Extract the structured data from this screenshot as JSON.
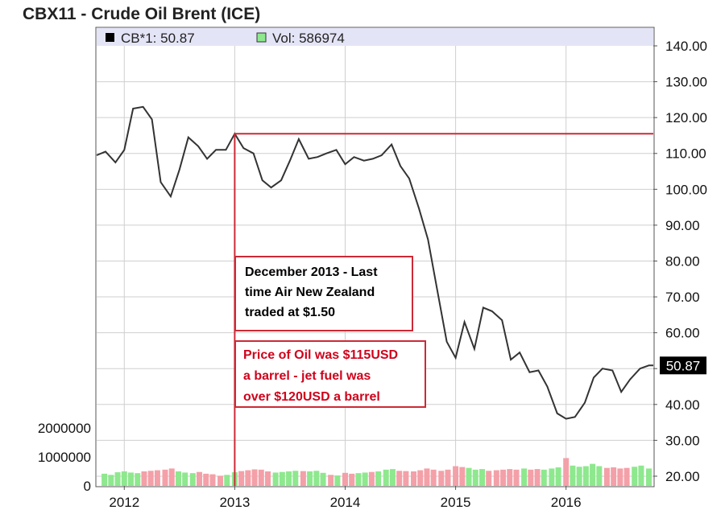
{
  "chart_data": {
    "type": "line",
    "title": "CBX11 - Crude Oil Brent (ICE)",
    "legend": [
      {
        "label": "CB*1: 50.87",
        "color": "#000000"
      },
      {
        "label": "Vol: 586974",
        "color": "#8ee88e"
      }
    ],
    "price_label": "50.87",
    "x_ticks": [
      {
        "x": 2012.0,
        "label": "2012"
      },
      {
        "x": 2013.0,
        "label": "2013"
      },
      {
        "x": 2014.0,
        "label": "2014"
      },
      {
        "x": 2015.0,
        "label": "2015"
      },
      {
        "x": 2016.0,
        "label": "2016"
      }
    ],
    "xlim": [
      2011.75,
      2016.79
    ],
    "ylim": [
      17.3,
      140
    ],
    "y_ticks": [
      "140.00",
      "130.00",
      "120.00",
      "110.00",
      "100.00",
      "90.00",
      "80.00",
      "70.00",
      "60.00",
      "50.00",
      "40.00",
      "30.00",
      "20.00"
    ],
    "y_tick_values": [
      140,
      130,
      120,
      110,
      100,
      90,
      80,
      70,
      60,
      50,
      40,
      30,
      20
    ],
    "volume_ticks": [
      {
        "value": 2000000,
        "label": "2000000"
      },
      {
        "value": 1000000,
        "label": "1000000"
      },
      {
        "value": 0,
        "label": "0"
      }
    ],
    "volume_max": 2000000,
    "series": [
      {
        "name": "CB*1",
        "color": "#333333",
        "x": [
          2011.75,
          2011.83,
          2011.92,
          2012.0,
          2012.08,
          2012.17,
          2012.25,
          2012.33,
          2012.42,
          2012.5,
          2012.58,
          2012.67,
          2012.75,
          2012.83,
          2012.92,
          2013.0,
          2013.08,
          2013.17,
          2013.25,
          2013.33,
          2013.42,
          2013.5,
          2013.58,
          2013.67,
          2013.75,
          2013.83,
          2013.92,
          2014.0,
          2014.08,
          2014.17,
          2014.25,
          2014.33,
          2014.42,
          2014.5,
          2014.58,
          2014.67,
          2014.75,
          2014.83,
          2014.92,
          2015.0,
          2015.08,
          2015.17,
          2015.25,
          2015.33,
          2015.42,
          2015.5,
          2015.58,
          2015.67,
          2015.75,
          2015.83,
          2015.92,
          2016.0,
          2016.08,
          2016.17,
          2016.25,
          2016.33,
          2016.42,
          2016.5,
          2016.58,
          2016.67,
          2016.75,
          2016.79
        ],
        "values": [
          109.5,
          110.5,
          107.5,
          111,
          122.5,
          123,
          119.5,
          102,
          98,
          105.5,
          114.5,
          112,
          108.5,
          111,
          111,
          115.5,
          111.5,
          110,
          102.5,
          100.5,
          102.5,
          108,
          114,
          108.5,
          109,
          110,
          111,
          107,
          109,
          108,
          108.5,
          109.5,
          112.5,
          106.5,
          103,
          94.5,
          86,
          72.5,
          57.5,
          53,
          63,
          55.5,
          67,
          66,
          63.5,
          52.5,
          54.5,
          49,
          49.5,
          45,
          37.5,
          36,
          36.5,
          40.5,
          47.5,
          50,
          49.5,
          43.5,
          47,
          50,
          50.87,
          50.87
        ]
      }
    ],
    "volume": [
      {
        "x": 2011.82,
        "value": 420000,
        "color": "#8ee88e"
      },
      {
        "x": 2011.88,
        "value": 380000,
        "color": "#8ee88e"
      },
      {
        "x": 2011.94,
        "value": 470000,
        "color": "#8ee88e"
      },
      {
        "x": 2012.0,
        "value": 500000,
        "color": "#8ee88e"
      },
      {
        "x": 2012.06,
        "value": 460000,
        "color": "#8ee88e"
      },
      {
        "x": 2012.12,
        "value": 440000,
        "color": "#8ee88e"
      },
      {
        "x": 2012.18,
        "value": 500000,
        "color": "#f4a0a8"
      },
      {
        "x": 2012.24,
        "value": 520000,
        "color": "#f4a0a8"
      },
      {
        "x": 2012.3,
        "value": 540000,
        "color": "#f4a0a8"
      },
      {
        "x": 2012.37,
        "value": 560000,
        "color": "#f4a0a8"
      },
      {
        "x": 2012.43,
        "value": 600000,
        "color": "#f4a0a8"
      },
      {
        "x": 2012.49,
        "value": 500000,
        "color": "#8ee88e"
      },
      {
        "x": 2012.55,
        "value": 460000,
        "color": "#8ee88e"
      },
      {
        "x": 2012.62,
        "value": 440000,
        "color": "#8ee88e"
      },
      {
        "x": 2012.68,
        "value": 480000,
        "color": "#f4a0a8"
      },
      {
        "x": 2012.74,
        "value": 420000,
        "color": "#f4a0a8"
      },
      {
        "x": 2012.8,
        "value": 400000,
        "color": "#f4a0a8"
      },
      {
        "x": 2012.87,
        "value": 350000,
        "color": "#f4a0a8"
      },
      {
        "x": 2012.93,
        "value": 380000,
        "color": "#8ee88e"
      },
      {
        "x": 2013.0,
        "value": 470000,
        "color": "#8ee88e"
      },
      {
        "x": 2013.06,
        "value": 510000,
        "color": "#f4a0a8"
      },
      {
        "x": 2013.12,
        "value": 540000,
        "color": "#f4a0a8"
      },
      {
        "x": 2013.18,
        "value": 570000,
        "color": "#f4a0a8"
      },
      {
        "x": 2013.24,
        "value": 560000,
        "color": "#f4a0a8"
      },
      {
        "x": 2013.3,
        "value": 500000,
        "color": "#f4a0a8"
      },
      {
        "x": 2013.37,
        "value": 460000,
        "color": "#8ee88e"
      },
      {
        "x": 2013.43,
        "value": 480000,
        "color": "#8ee88e"
      },
      {
        "x": 2013.49,
        "value": 500000,
        "color": "#8ee88e"
      },
      {
        "x": 2013.55,
        "value": 520000,
        "color": "#8ee88e"
      },
      {
        "x": 2013.62,
        "value": 510000,
        "color": "#f4a0a8"
      },
      {
        "x": 2013.68,
        "value": 500000,
        "color": "#8ee88e"
      },
      {
        "x": 2013.74,
        "value": 520000,
        "color": "#8ee88e"
      },
      {
        "x": 2013.8,
        "value": 450000,
        "color": "#8ee88e"
      },
      {
        "x": 2013.87,
        "value": 380000,
        "color": "#f4a0a8"
      },
      {
        "x": 2013.93,
        "value": 360000,
        "color": "#8ee88e"
      },
      {
        "x": 2014.0,
        "value": 450000,
        "color": "#f4a0a8"
      },
      {
        "x": 2014.06,
        "value": 420000,
        "color": "#f4a0a8"
      },
      {
        "x": 2014.12,
        "value": 440000,
        "color": "#8ee88e"
      },
      {
        "x": 2014.18,
        "value": 460000,
        "color": "#8ee88e"
      },
      {
        "x": 2014.24,
        "value": 480000,
        "color": "#f4a0a8"
      },
      {
        "x": 2014.3,
        "value": 500000,
        "color": "#8ee88e"
      },
      {
        "x": 2014.37,
        "value": 560000,
        "color": "#8ee88e"
      },
      {
        "x": 2014.43,
        "value": 580000,
        "color": "#8ee88e"
      },
      {
        "x": 2014.49,
        "value": 520000,
        "color": "#f4a0a8"
      },
      {
        "x": 2014.55,
        "value": 510000,
        "color": "#f4a0a8"
      },
      {
        "x": 2014.62,
        "value": 500000,
        "color": "#f4a0a8"
      },
      {
        "x": 2014.68,
        "value": 540000,
        "color": "#f4a0a8"
      },
      {
        "x": 2014.74,
        "value": 600000,
        "color": "#f4a0a8"
      },
      {
        "x": 2014.8,
        "value": 560000,
        "color": "#f4a0a8"
      },
      {
        "x": 2014.87,
        "value": 520000,
        "color": "#f4a0a8"
      },
      {
        "x": 2014.93,
        "value": 560000,
        "color": "#f4a0a8"
      },
      {
        "x": 2015.0,
        "value": 680000,
        "color": "#f4a0a8"
      },
      {
        "x": 2015.06,
        "value": 650000,
        "color": "#f4a0a8"
      },
      {
        "x": 2015.12,
        "value": 620000,
        "color": "#8ee88e"
      },
      {
        "x": 2015.18,
        "value": 560000,
        "color": "#8ee88e"
      },
      {
        "x": 2015.24,
        "value": 580000,
        "color": "#8ee88e"
      },
      {
        "x": 2015.3,
        "value": 520000,
        "color": "#f4a0a8"
      },
      {
        "x": 2015.37,
        "value": 540000,
        "color": "#f4a0a8"
      },
      {
        "x": 2015.43,
        "value": 560000,
        "color": "#f4a0a8"
      },
      {
        "x": 2015.49,
        "value": 580000,
        "color": "#f4a0a8"
      },
      {
        "x": 2015.55,
        "value": 560000,
        "color": "#f4a0a8"
      },
      {
        "x": 2015.62,
        "value": 600000,
        "color": "#8ee88e"
      },
      {
        "x": 2015.68,
        "value": 560000,
        "color": "#f4a0a8"
      },
      {
        "x": 2015.74,
        "value": 580000,
        "color": "#f4a0a8"
      },
      {
        "x": 2015.8,
        "value": 560000,
        "color": "#8ee88e"
      },
      {
        "x": 2015.87,
        "value": 600000,
        "color": "#8ee88e"
      },
      {
        "x": 2015.93,
        "value": 640000,
        "color": "#8ee88e"
      },
      {
        "x": 2016.0,
        "value": 960000,
        "color": "#f4a0a8"
      },
      {
        "x": 2016.06,
        "value": 700000,
        "color": "#8ee88e"
      },
      {
        "x": 2016.12,
        "value": 660000,
        "color": "#8ee88e"
      },
      {
        "x": 2016.18,
        "value": 680000,
        "color": "#8ee88e"
      },
      {
        "x": 2016.24,
        "value": 760000,
        "color": "#8ee88e"
      },
      {
        "x": 2016.3,
        "value": 680000,
        "color": "#8ee88e"
      },
      {
        "x": 2016.37,
        "value": 620000,
        "color": "#f4a0a8"
      },
      {
        "x": 2016.43,
        "value": 640000,
        "color": "#f4a0a8"
      },
      {
        "x": 2016.49,
        "value": 600000,
        "color": "#f4a0a8"
      },
      {
        "x": 2016.55,
        "value": 620000,
        "color": "#f4a0a8"
      },
      {
        "x": 2016.62,
        "value": 660000,
        "color": "#8ee88e"
      },
      {
        "x": 2016.68,
        "value": 700000,
        "color": "#8ee88e"
      },
      {
        "x": 2016.75,
        "value": 600000,
        "color": "#8ee88e"
      }
    ],
    "annotations": [
      {
        "text": [
          "December 2013 - Last",
          "time Air New Zealand",
          "traded at $1.50"
        ],
        "color": "#000000"
      },
      {
        "text": [
          "Price of Oil was $115USD",
          "a barrel - jet fuel was",
          "over $120USD a barrel"
        ],
        "color": "#d0021b"
      }
    ],
    "reference_lines": {
      "color": "#cc2a36",
      "x": 2013.0,
      "y": 115.5
    }
  }
}
